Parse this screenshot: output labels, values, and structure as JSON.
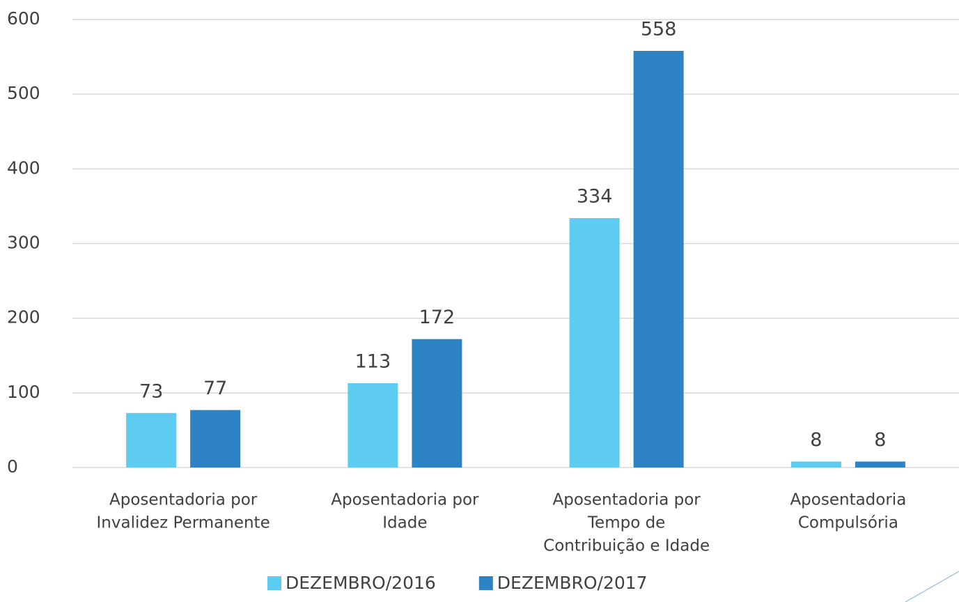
{
  "chart_data": {
    "type": "bar",
    "categories": [
      [
        "Aposentadoria por",
        "Invalidez Permanente"
      ],
      [
        "Aposentadoria por",
        "Idade"
      ],
      [
        "Aposentadoria por",
        "Tempo de",
        "Contribuição e Idade"
      ],
      [
        "Aposentadoria",
        "Compulsória"
      ]
    ],
    "series": [
      {
        "name": "DEZEMBRO/2016",
        "color": "#5ecbf0",
        "values": [
          73,
          113,
          334,
          8
        ]
      },
      {
        "name": "DEZEMBRO/2017",
        "color": "#2e83c4",
        "values": [
          77,
          172,
          558,
          8
        ]
      }
    ],
    "ylim": [
      0,
      600
    ],
    "yticks": [
      0,
      100,
      200,
      300,
      400,
      500,
      600
    ],
    "grid": true,
    "legend": "bottom"
  }
}
